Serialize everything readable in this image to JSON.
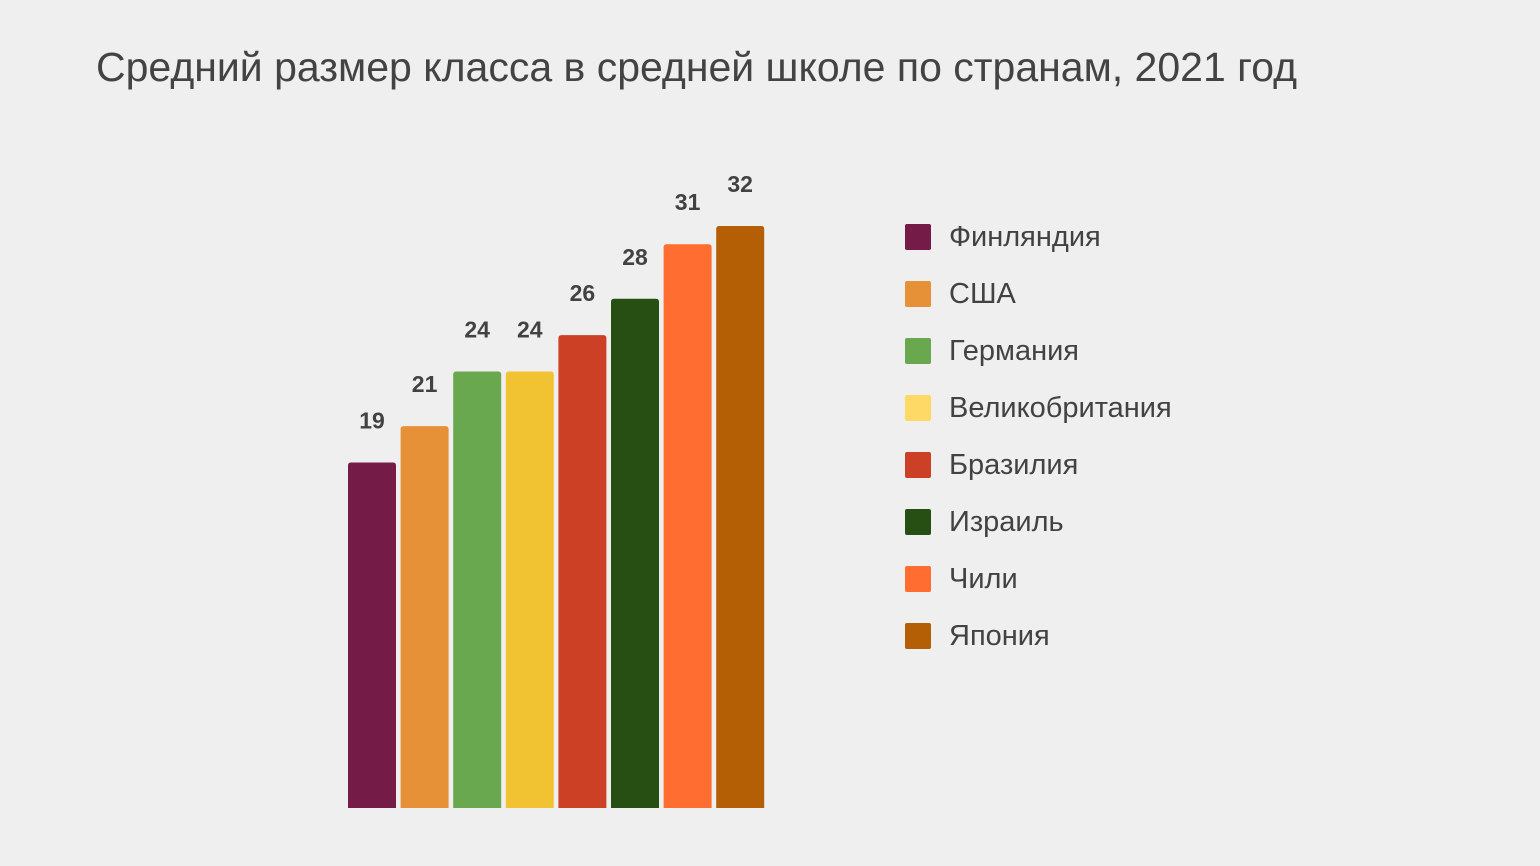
{
  "chart_data": {
    "type": "bar",
    "title": "Средний размер класса в средней школе по странам, 2021 год",
    "xlabel": "",
    "ylabel": "",
    "ylim": [
      0,
      32
    ],
    "grid": false,
    "legend_position": "right",
    "categories": [
      "Финляндия",
      "США",
      "Германия",
      "Великобритания",
      "Бразилия",
      "Израиль",
      "Чили",
      "Япония"
    ],
    "values": [
      19,
      21,
      24,
      24,
      26,
      28,
      31,
      32
    ],
    "bar_colors": [
      "#741b47",
      "#e69138",
      "#6aa84f",
      "#f1c232",
      "#cc4125",
      "#274e13",
      "#ff6d31",
      "#b45f06"
    ],
    "legend_colors": [
      "#741b47",
      "#e69138",
      "#6aa84f",
      "#ffd966",
      "#cc4125",
      "#274e13",
      "#ff6d31",
      "#b45f06"
    ],
    "data_labels": [
      "19",
      "21",
      "24",
      "24",
      "26",
      "28",
      "31",
      "32"
    ]
  }
}
